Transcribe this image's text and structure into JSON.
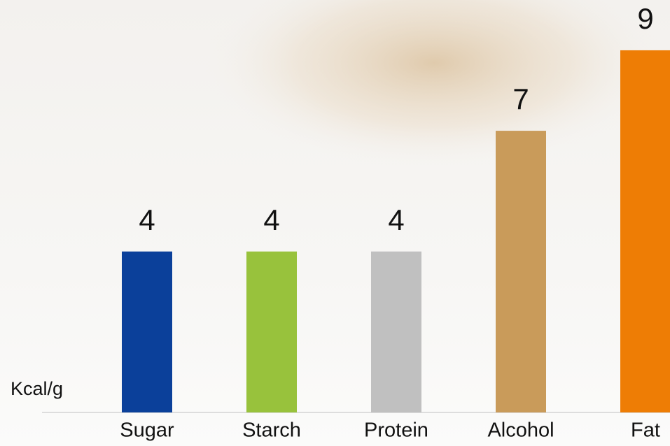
{
  "chart_data": {
    "type": "bar",
    "y_label": "Kcal/g",
    "categories": [
      "Sugar",
      "Starch",
      "Protein",
      "Alcohol",
      "Fat"
    ],
    "values": [
      4,
      4,
      4,
      7,
      9
    ],
    "colors": [
      "#0b409a",
      "#98c23c",
      "#c0c0c0",
      "#c99b5a",
      "#ee7d05"
    ],
    "ylim": [
      0,
      10.25
    ]
  }
}
